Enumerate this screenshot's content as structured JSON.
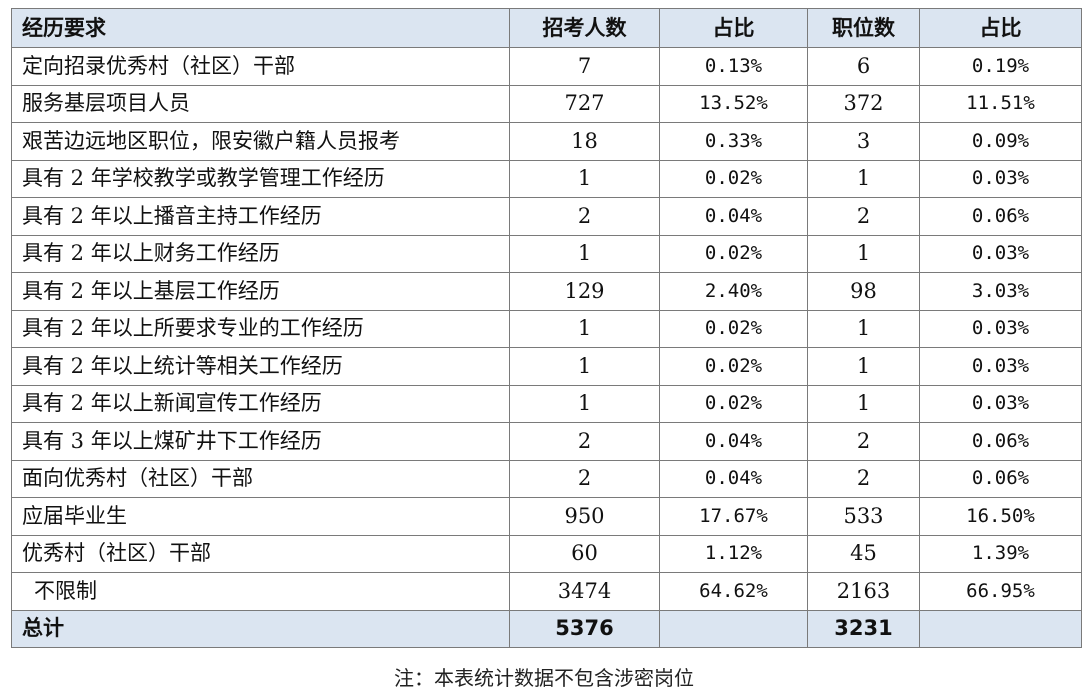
{
  "table": {
    "headers": [
      "经历要求",
      "招考人数",
      "占比",
      "职位数",
      "占比"
    ],
    "rows": [
      {
        "req": "定向招录优秀村（社区）干部",
        "recruit": "7",
        "recruit_pct": "0.13%",
        "positions": "6",
        "positions_pct": "0.19%"
      },
      {
        "req": "服务基层项目人员",
        "recruit": "727",
        "recruit_pct": "13.52%",
        "positions": "372",
        "positions_pct": "11.51%"
      },
      {
        "req": "艰苦边远地区职位，限安徽户籍人员报考",
        "recruit": "18",
        "recruit_pct": "0.33%",
        "positions": "3",
        "positions_pct": "0.09%"
      },
      {
        "req": "具有 2 年学校教学或教学管理工作经历",
        "recruit": "1",
        "recruit_pct": "0.02%",
        "positions": "1",
        "positions_pct": "0.03%"
      },
      {
        "req": "具有 2 年以上播音主持工作经历",
        "recruit": "2",
        "recruit_pct": "0.04%",
        "positions": "2",
        "positions_pct": "0.06%"
      },
      {
        "req": "具有 2 年以上财务工作经历",
        "recruit": "1",
        "recruit_pct": "0.02%",
        "positions": "1",
        "positions_pct": "0.03%"
      },
      {
        "req": "具有 2 年以上基层工作经历",
        "recruit": "129",
        "recruit_pct": "2.40%",
        "positions": "98",
        "positions_pct": "3.03%"
      },
      {
        "req": "具有 2 年以上所要求专业的工作经历",
        "recruit": "1",
        "recruit_pct": "0.02%",
        "positions": "1",
        "positions_pct": "0.03%"
      },
      {
        "req": "具有 2 年以上统计等相关工作经历",
        "recruit": "1",
        "recruit_pct": "0.02%",
        "positions": "1",
        "positions_pct": "0.03%"
      },
      {
        "req": "具有 2 年以上新闻宣传工作经历",
        "recruit": "1",
        "recruit_pct": "0.02%",
        "positions": "1",
        "positions_pct": "0.03%"
      },
      {
        "req": "具有 3 年以上煤矿井下工作经历",
        "recruit": "2",
        "recruit_pct": "0.04%",
        "positions": "2",
        "positions_pct": "0.06%"
      },
      {
        "req": "面向优秀村（社区）干部",
        "recruit": "2",
        "recruit_pct": "0.04%",
        "positions": "2",
        "positions_pct": "0.06%"
      },
      {
        "req": "应届毕业生",
        "recruit": "950",
        "recruit_pct": "17.67%",
        "positions": "533",
        "positions_pct": "16.50%"
      },
      {
        "req": "优秀村（社区）干部",
        "recruit": "60",
        "recruit_pct": "1.12%",
        "positions": "45",
        "positions_pct": "1.39%"
      },
      {
        "req": "不限制",
        "recruit": "3474",
        "recruit_pct": "64.62%",
        "positions": "2163",
        "positions_pct": "66.95%"
      }
    ],
    "total": {
      "label": "总计",
      "recruit": "5376",
      "recruit_pct": "",
      "positions": "3231",
      "positions_pct": ""
    }
  },
  "note": "注：本表统计数据不包含涉密岗位"
}
